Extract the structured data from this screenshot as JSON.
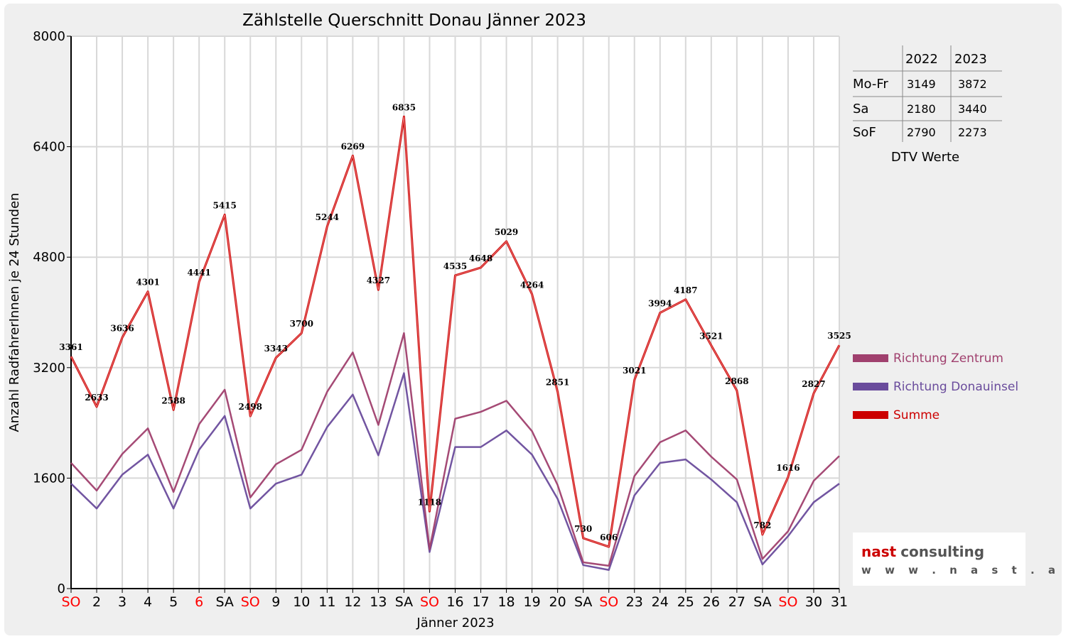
{
  "chart_data": {
    "type": "line",
    "title": "Zählstelle Querschnitt Donau Jänner 2023",
    "xlabel": "Jänner 2023",
    "ylabel": "Anzahl RadfahrerInnen je 24 Stunden",
    "ylim": [
      0,
      8000
    ],
    "yticks": [
      0,
      1600,
      3200,
      4800,
      6400,
      8000
    ],
    "categories": [
      "SO",
      "2",
      "3",
      "4",
      "5",
      "6",
      "SA",
      "SO",
      "9",
      "10",
      "11",
      "12",
      "13",
      "SA",
      "SO",
      "16",
      "17",
      "18",
      "19",
      "20",
      "SA",
      "SO",
      "23",
      "24",
      "25",
      "26",
      "27",
      "SA",
      "SO",
      "30",
      "31"
    ],
    "highlight_categories": [
      0,
      5,
      7,
      14,
      21,
      28
    ],
    "grid": true,
    "legend_position": "right",
    "series": [
      {
        "name": "Richtung Zentrum",
        "color": "#a0406e",
        "values": [
          1820,
          1420,
          1950,
          2320,
          1400,
          2380,
          2880,
          1320,
          1800,
          2010,
          2850,
          3420,
          2370,
          3700,
          570,
          2460,
          2560,
          2720,
          2280,
          1500,
          380,
          330,
          1630,
          2120,
          2290,
          1910,
          1580,
          430,
          830,
          1560,
          1920
        ]
      },
      {
        "name": "Richtung Donauinsel",
        "color": "#6a4c9c",
        "values": [
          1520,
          1160,
          1650,
          1940,
          1160,
          2010,
          2500,
          1160,
          1520,
          1650,
          2340,
          2810,
          1930,
          3120,
          530,
          2050,
          2050,
          2290,
          1940,
          1300,
          340,
          270,
          1350,
          1820,
          1870,
          1580,
          1250,
          350,
          760,
          1250,
          1520
        ]
      },
      {
        "name": "Summe",
        "color": "#cc0000",
        "values": [
          3361,
          2633,
          3636,
          4301,
          2588,
          4441,
          5415,
          2498,
          3343,
          3700,
          5244,
          6269,
          4327,
          6835,
          1118,
          4535,
          4648,
          5029,
          4264,
          2851,
          730,
          606,
          3021,
          3994,
          4187,
          3521,
          2868,
          782,
          1616,
          2827,
          3525
        ],
        "labels": [
          "3361",
          "2633",
          "3636",
          "4301",
          "2588",
          "4441",
          "5415",
          "2498",
          "3343",
          "3700",
          "5244",
          "6269",
          "4327",
          "6835",
          "1118",
          "4535",
          "4648",
          "5029",
          "4264",
          "2851",
          "730",
          "606",
          "3021",
          "3994",
          "4187",
          "3521",
          "2868",
          "782",
          "1616",
          "2827",
          "3525"
        ]
      }
    ]
  },
  "dtv_table": {
    "caption": "DTV Werte",
    "columns": [
      "2022",
      "2023"
    ],
    "rows": [
      {
        "label": "Mo-Fr",
        "values": [
          "3149",
          "3872"
        ]
      },
      {
        "label": "Sa",
        "values": [
          "2180",
          "3440"
        ]
      },
      {
        "label": "SoF",
        "values": [
          "2790",
          "2273"
        ]
      }
    ]
  },
  "logo": {
    "name_part1": "nast",
    "name_part2": "consulting",
    "url": "w w w . n a s t . a t",
    "color1": "#cc0000",
    "color2": "#555555"
  },
  "colors": {
    "highlight_tick": "#ff0000",
    "tick": "#000000",
    "grid": "#d8d8d8"
  }
}
